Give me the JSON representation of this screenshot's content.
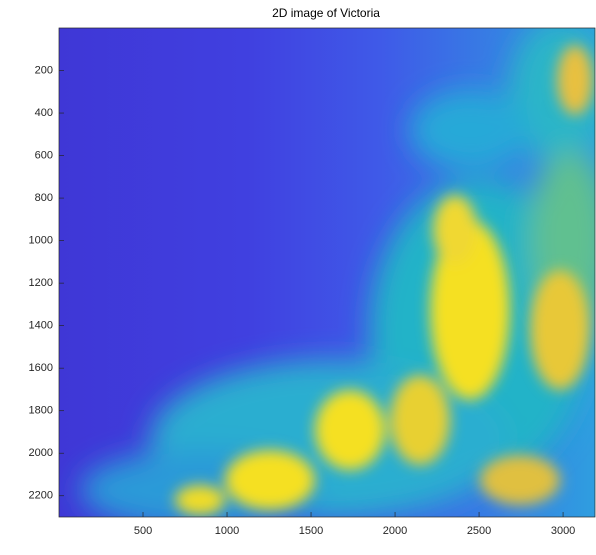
{
  "chart_data": {
    "type": "image",
    "title": "2D image  of Victoria",
    "xlim": [
      0,
      3190
    ],
    "ylim": [
      0,
      2300
    ],
    "xticks": [
      500,
      1000,
      1500,
      2000,
      2500,
      3000
    ],
    "yticks": [
      200,
      400,
      600,
      800,
      1000,
      1200,
      1400,
      1600,
      1800,
      2000,
      2200
    ],
    "y_reversed": true
  }
}
